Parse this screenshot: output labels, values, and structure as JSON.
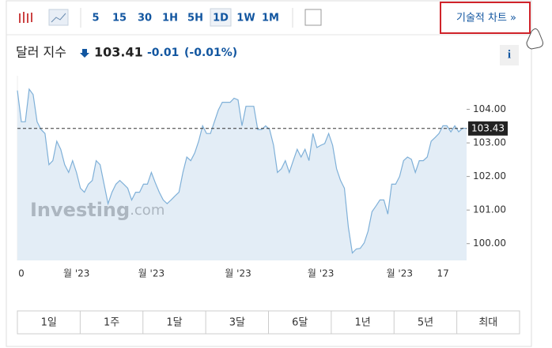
{
  "toolbar": {
    "intervals": [
      "5",
      "15",
      "30",
      "1H",
      "5H",
      "1D",
      "1W",
      "1M"
    ],
    "tech_chart": "기술적 차트 »"
  },
  "header": {
    "name": "달러 지수",
    "price": "103.41",
    "change": "-0.01",
    "change_pct": "(-0.01%)",
    "info": "i"
  },
  "watermark": {
    "brand": "Investing",
    ".com": ".com"
  },
  "ranges": [
    "1일",
    "1주",
    "1달",
    "3달",
    "6달",
    "1년",
    "5년",
    "최대"
  ],
  "chart_data": {
    "type": "line",
    "categories": [
      null,
      "0",
      null,
      null,
      null,
      null,
      null,
      null,
      null,
      null,
      null,
      null,
      null,
      null,
      null,
      "월 '23",
      null,
      null,
      null,
      null,
      null,
      null,
      null,
      null,
      null,
      null,
      null,
      null,
      null,
      null,
      null,
      null,
      null,
      null,
      "월 '23",
      null,
      null,
      null,
      null,
      null,
      null,
      null,
      null,
      null,
      null,
      null,
      null,
      null,
      null,
      null,
      null,
      null,
      null,
      null,
      null,
      null,
      "월 '23",
      null,
      null,
      null,
      null,
      null,
      null,
      null,
      null,
      null,
      null,
      null,
      null,
      null,
      null,
      null,
      null,
      null,
      null,
      null,
      null,
      "월 '23",
      null,
      null,
      null,
      null,
      null,
      null,
      null,
      null,
      null,
      null,
      null,
      null,
      null,
      null,
      null,
      null,
      null,
      null,
      null,
      "월 '23",
      null,
      null,
      null,
      null,
      null,
      null,
      null,
      null,
      null,
      null,
      "17",
      null,
      null,
      null,
      null,
      null,
      null
    ],
    "series": [
      {
        "color": "#7fb0d8",
        "values": [
          104.56,
          103.63,
          103.63,
          104.6,
          104.44,
          103.63,
          103.4,
          103.28,
          102.35,
          102.47,
          103.05,
          102.81,
          102.35,
          102.12,
          102.47,
          102.12,
          101.65,
          101.53,
          101.77,
          101.88,
          102.47,
          102.35,
          101.77,
          101.19,
          101.53,
          101.77,
          101.88,
          101.77,
          101.65,
          101.3,
          101.53,
          101.53,
          101.77,
          101.77,
          102.12,
          101.81,
          101.53,
          101.3,
          101.19,
          101.3,
          101.42,
          101.53,
          102.12,
          102.58,
          102.47,
          102.7,
          103.05,
          103.51,
          103.28,
          103.28,
          103.63,
          103.98,
          104.21,
          104.21,
          104.21,
          104.33,
          104.28,
          103.51,
          104.09,
          104.09,
          104.09,
          103.4,
          103.4,
          103.51,
          103.4,
          102.93,
          102.12,
          102.23,
          102.47,
          102.12,
          102.47,
          102.81,
          102.58,
          102.81,
          102.47,
          103.28,
          102.86,
          102.93,
          102.98,
          103.28,
          102.93,
          102.23,
          101.88,
          101.65,
          100.49,
          99.72,
          99.84,
          99.86,
          100.02,
          100.37,
          100.95,
          101.12,
          101.3,
          101.3,
          100.88,
          101.77,
          101.77,
          102.0,
          102.47,
          102.58,
          102.51,
          102.12,
          102.47,
          102.47,
          102.58,
          103.05,
          103.16,
          103.28,
          103.51,
          103.51,
          103.33,
          103.51,
          103.33,
          103.44,
          103.43
        ]
      }
    ],
    "ylim": [
      99.5,
      105.0
    ],
    "yticks": [
      {
        "value": 100,
        "label": "100.00"
      },
      {
        "value": 101,
        "label": "101.00"
      },
      {
        "value": 102,
        "label": "102.00"
      },
      {
        "value": 103,
        "label": "103.00"
      },
      {
        "value": 104,
        "label": "104.00"
      }
    ],
    "last_value": 103.43,
    "fill_color": "#e3edf6"
  }
}
